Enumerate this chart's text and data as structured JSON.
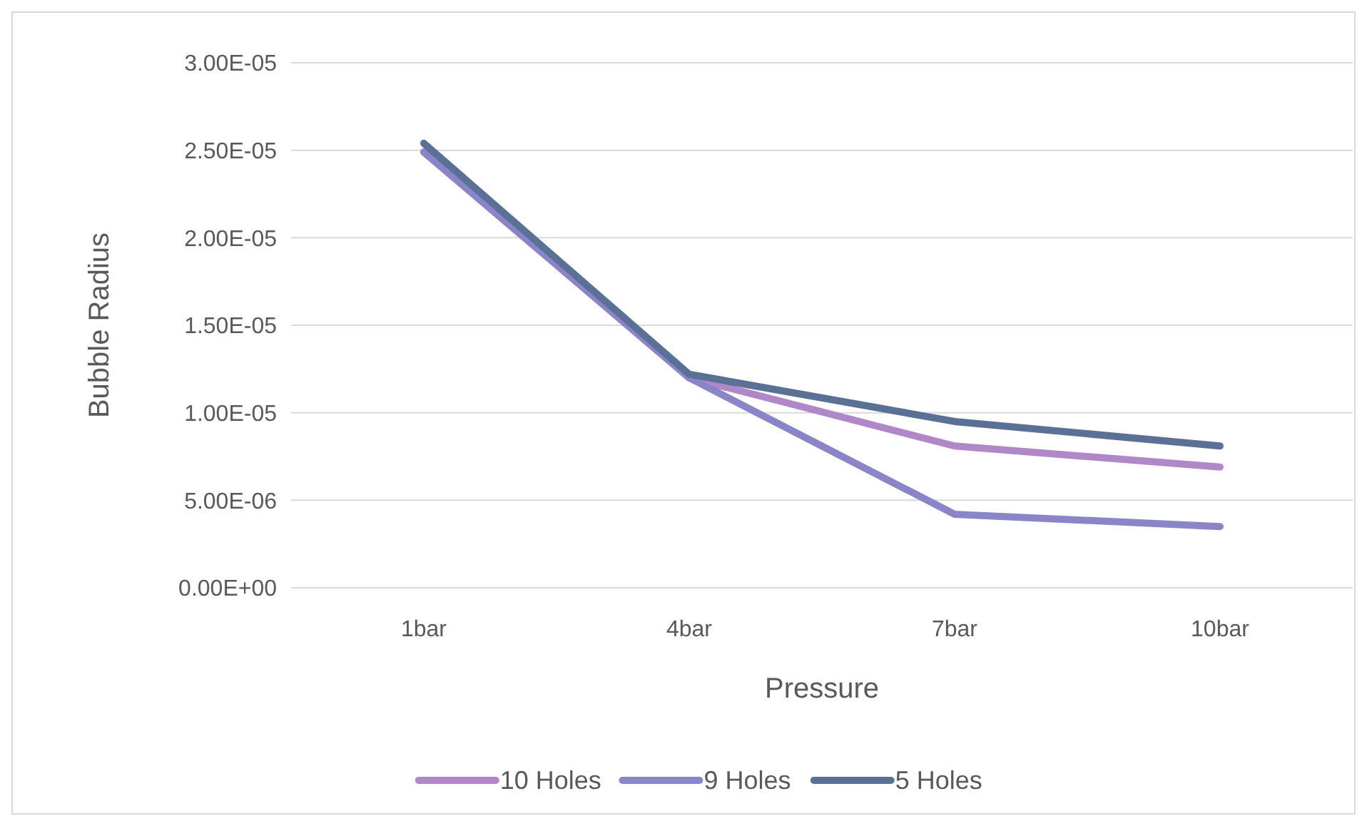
{
  "chart_data": {
    "type": "line",
    "xlabel": "Pressure",
    "ylabel": "Bubble Radius",
    "categories": [
      "1bar",
      "4bar",
      "7bar",
      "10bar"
    ],
    "series": [
      {
        "name": "10 Holes",
        "color": "#b088c8",
        "values": [
          2.49e-05,
          1.2e-05,
          8.1e-06,
          6.9e-06
        ]
      },
      {
        "name": "9 Holes",
        "color": "#8a84c8",
        "values": [
          2.49e-05,
          1.2e-05,
          4.2e-06,
          3.5e-06
        ]
      },
      {
        "name": "5 Holes",
        "color": "#5a7095",
        "values": [
          2.54e-05,
          1.22e-05,
          9.5e-06,
          8.1e-06
        ]
      }
    ],
    "ylim": [
      0,
      3e-05
    ],
    "yticks": [
      {
        "value": 0,
        "label": "0.00E+00"
      },
      {
        "value": 5e-06,
        "label": "5.00E-06"
      },
      {
        "value": 1e-05,
        "label": "1.00E-05"
      },
      {
        "value": 1.5e-05,
        "label": "1.50E-05"
      },
      {
        "value": 2e-05,
        "label": "2.00E-05"
      },
      {
        "value": 2.5e-05,
        "label": "2.50E-05"
      },
      {
        "value": 3e-05,
        "label": "3.00E-05"
      }
    ],
    "grid": "y",
    "legend": "bottom",
    "marker": "none",
    "line_style": "solid"
  }
}
